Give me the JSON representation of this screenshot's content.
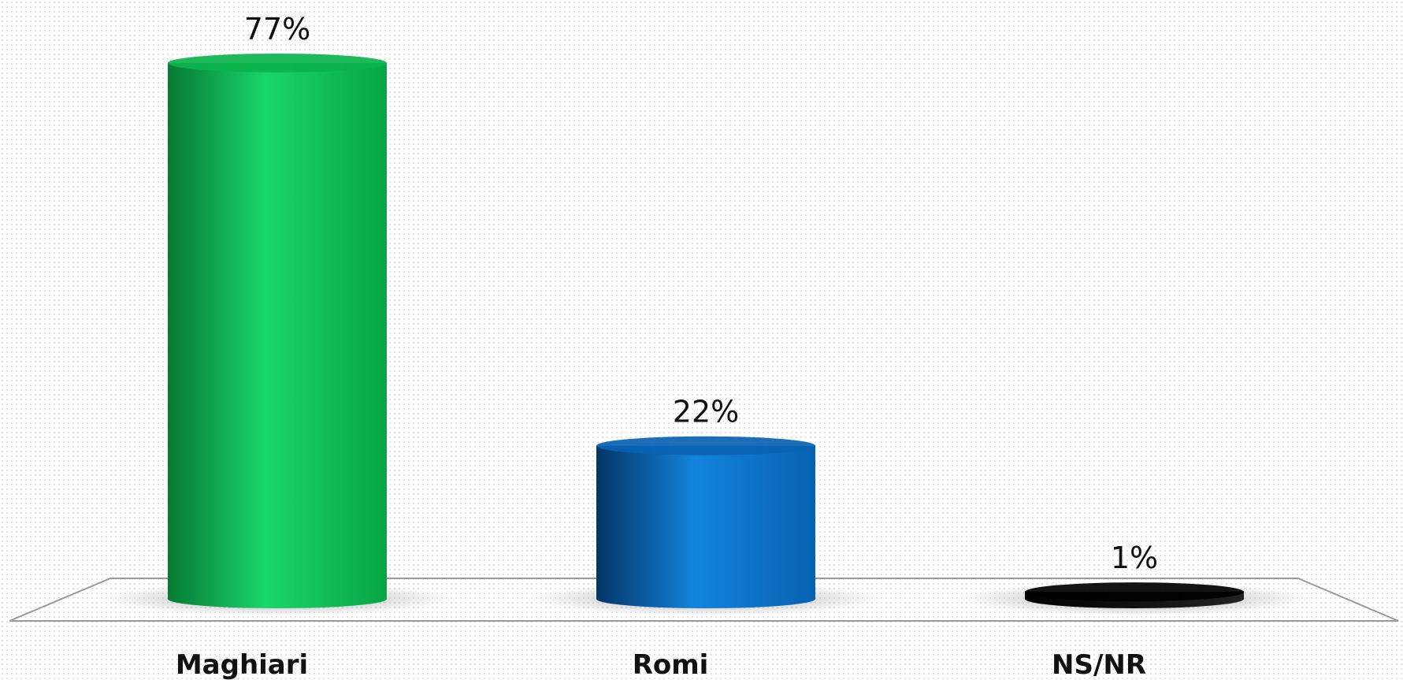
{
  "chart_data": {
    "type": "bar",
    "style": "3d-cylinder",
    "categories": [
      "Maghiari",
      "Romi",
      "NS/NR"
    ],
    "values": [
      77,
      22,
      1
    ],
    "value_labels": [
      "77%",
      "22%",
      "1%"
    ],
    "colors": [
      "#0bb34d",
      "#0a62b3",
      "#000000"
    ],
    "unit": "%",
    "ylim": [
      0,
      77
    ],
    "title": "",
    "xlabel": "",
    "ylabel": "",
    "grid": false,
    "legend": "none"
  }
}
